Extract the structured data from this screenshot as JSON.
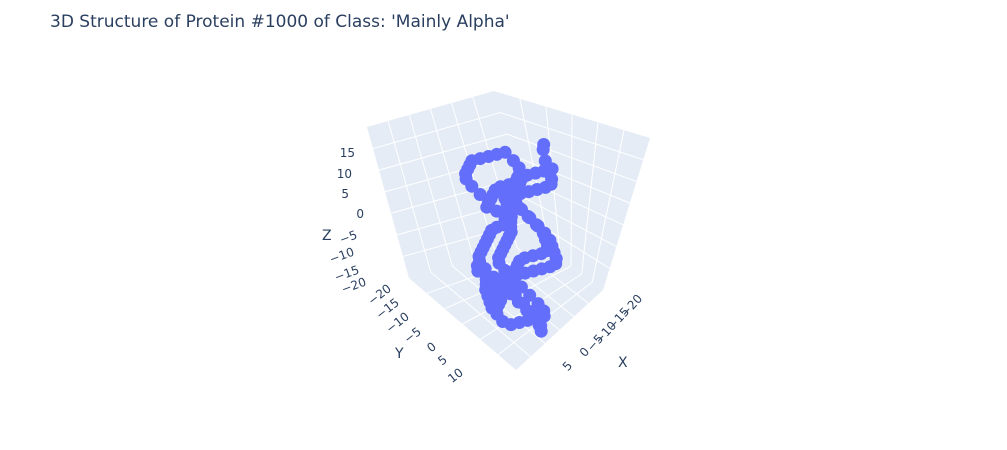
{
  "chart_data": {
    "type": "scatter",
    "title": "3D Structure of Protein #1000 of Class: 'Mainly Alpha'",
    "xlabel": "X",
    "ylabel": "Y",
    "zlabel": "Z",
    "x_ticks": [
      "−20",
      "−15",
      "−10",
      "−5",
      "0",
      "5"
    ],
    "y_ticks": [
      "−20",
      "−15",
      "−10",
      "−5",
      "0",
      "5",
      "10"
    ],
    "z_ticks": [
      "15",
      "10",
      "5",
      "0",
      "−5",
      "−10",
      "−15",
      "−20"
    ],
    "marker_color": "#636efa",
    "grid": true,
    "points": [
      [
        -3,
        9,
        17
      ],
      [
        -4,
        8,
        16
      ],
      [
        -6,
        7,
        14
      ],
      [
        -8,
        6,
        13
      ],
      [
        -10,
        5,
        12
      ],
      [
        -12,
        4,
        11
      ],
      [
        -13,
        3,
        10
      ],
      [
        -12,
        2,
        9
      ],
      [
        -10,
        1,
        8
      ],
      [
        -8,
        0,
        7
      ],
      [
        -6,
        -1,
        6
      ],
      [
        -4,
        -1,
        5
      ],
      [
        -3,
        0,
        4
      ],
      [
        -4,
        1,
        3
      ],
      [
        -6,
        2,
        2
      ],
      [
        -8,
        3,
        1
      ],
      [
        -10,
        3,
        0
      ],
      [
        -12,
        2,
        -1
      ],
      [
        -14,
        1,
        -2
      ],
      [
        -15,
        0,
        -3
      ],
      [
        -14,
        -1,
        -4
      ],
      [
        -12,
        -2,
        -5
      ],
      [
        -10,
        -3,
        -6
      ],
      [
        -8,
        -3,
        -7
      ],
      [
        -6,
        -2,
        -8
      ],
      [
        -4,
        -1,
        -9
      ],
      [
        -2,
        0,
        -10
      ],
      [
        0,
        1,
        -11
      ],
      [
        2,
        2,
        -12
      ],
      [
        3,
        3,
        -13
      ],
      [
        2,
        4,
        -14
      ],
      [
        0,
        5,
        -15
      ],
      [
        -2,
        6,
        -16
      ],
      [
        -4,
        6,
        -17
      ],
      [
        -6,
        5,
        -18
      ],
      [
        -8,
        4,
        -19
      ],
      [
        -9,
        3,
        -18
      ],
      [
        -8,
        2,
        -17
      ],
      [
        -6,
        1,
        -16
      ],
      [
        -4,
        0,
        -15
      ],
      [
        -2,
        -1,
        -14
      ],
      [
        0,
        -2,
        -13
      ],
      [
        2,
        -3,
        -12
      ],
      [
        4,
        -4,
        -11
      ],
      [
        5,
        -5,
        -10
      ],
      [
        4,
        -6,
        -9
      ],
      [
        2,
        -7,
        -8
      ],
      [
        0,
        -8,
        -7
      ],
      [
        -2,
        -9,
        -6
      ],
      [
        -4,
        -10,
        -5
      ],
      [
        -6,
        -11,
        -4
      ],
      [
        -8,
        -12,
        -3
      ],
      [
        -10,
        -12,
        -2
      ],
      [
        -12,
        -11,
        -1
      ],
      [
        -13,
        -10,
        0
      ],
      [
        -12,
        -9,
        1
      ],
      [
        -10,
        -8,
        2
      ],
      [
        -8,
        -7,
        3
      ],
      [
        -6,
        -6,
        4
      ],
      [
        -5,
        -5,
        5
      ],
      [
        -6,
        -4,
        6
      ],
      [
        -8,
        -5,
        7
      ],
      [
        -10,
        -6,
        8
      ],
      [
        -12,
        -7,
        9
      ],
      [
        -14,
        -8,
        10
      ],
      [
        -15,
        -9,
        11
      ],
      [
        -14,
        -10,
        12
      ],
      [
        -12,
        -11,
        13
      ],
      [
        -10,
        -12,
        12
      ],
      [
        -8,
        -13,
        11
      ],
      [
        -6,
        -14,
        10
      ],
      [
        -4,
        -15,
        9
      ],
      [
        -2,
        -14,
        8
      ],
      [
        0,
        -13,
        7
      ],
      [
        2,
        -12,
        6
      ],
      [
        3,
        -11,
        5
      ],
      [
        2,
        -10,
        4
      ],
      [
        0,
        -9,
        3
      ],
      [
        -2,
        -8,
        2
      ],
      [
        -4,
        -7,
        1
      ],
      [
        -6,
        -6,
        0
      ],
      [
        -7,
        -5,
        -1
      ],
      [
        -6,
        -4,
        -2
      ],
      [
        -4,
        -3,
        -3
      ],
      [
        -2,
        -2,
        -4
      ],
      [
        0,
        -1,
        -5
      ],
      [
        2,
        0,
        -6
      ],
      [
        4,
        1,
        -7
      ],
      [
        6,
        2,
        -8
      ],
      [
        7,
        3,
        -9
      ],
      [
        6,
        4,
        -10
      ],
      [
        4,
        5,
        -11
      ],
      [
        2,
        6,
        -12
      ],
      [
        0,
        7,
        -13
      ],
      [
        -2,
        8,
        -14
      ],
      [
        -3,
        9,
        -15
      ],
      [
        -2,
        10,
        -16
      ],
      [
        0,
        9,
        -17
      ],
      [
        2,
        8,
        -18
      ],
      [
        4,
        7,
        -19
      ],
      [
        6,
        6,
        -20
      ],
      [
        8,
        5,
        -20
      ],
      [
        9,
        4,
        -19
      ],
      [
        8,
        3,
        -18
      ],
      [
        6,
        2,
        -17
      ],
      [
        4,
        1,
        -16
      ],
      [
        3,
        0,
        -15
      ],
      [
        4,
        -1,
        -14
      ],
      [
        6,
        -2,
        -13
      ],
      [
        8,
        -3,
        -12
      ],
      [
        7,
        -4,
        -11
      ],
      [
        5,
        -5,
        -10
      ],
      [
        1,
        -6,
        1
      ],
      [
        -1,
        -7,
        2
      ],
      [
        -3,
        -8,
        3
      ],
      [
        -5,
        -9,
        4
      ],
      [
        -7,
        -10,
        5
      ],
      [
        -9,
        -10,
        6
      ],
      [
        -11,
        -9,
        7
      ],
      [
        -13,
        -8,
        8
      ],
      [
        -11,
        5,
        13
      ],
      [
        -9,
        4,
        12
      ],
      [
        -7,
        3,
        11
      ],
      [
        -5,
        2,
        10
      ],
      [
        -3,
        2,
        9
      ],
      [
        -1,
        3,
        8
      ],
      [
        1,
        4,
        7
      ],
      [
        3,
        5,
        6
      ],
      [
        5,
        6,
        5
      ],
      [
        6,
        7,
        4
      ],
      [
        5,
        8,
        3
      ],
      [
        3,
        9,
        2
      ],
      [
        1,
        10,
        1
      ],
      [
        -1,
        11,
        0
      ],
      [
        -3,
        11,
        -1
      ],
      [
        -5,
        10,
        -2
      ],
      [
        -7,
        9,
        -3
      ],
      [
        -9,
        8,
        -4
      ],
      [
        -10,
        7,
        -5
      ],
      [
        -9,
        6,
        -6
      ],
      [
        -7,
        5,
        -7
      ],
      [
        -5,
        4,
        -8
      ],
      [
        -3,
        3,
        -9
      ],
      [
        -1,
        2,
        -10
      ],
      [
        1,
        1,
        -11
      ],
      [
        3,
        0,
        -12
      ],
      [
        5,
        -1,
        -13
      ],
      [
        6,
        -2,
        -14
      ],
      [
        5,
        -3,
        -15
      ],
      [
        3,
        -4,
        -16
      ],
      [
        1,
        -5,
        -17
      ],
      [
        -1,
        -6,
        -18
      ]
    ]
  }
}
